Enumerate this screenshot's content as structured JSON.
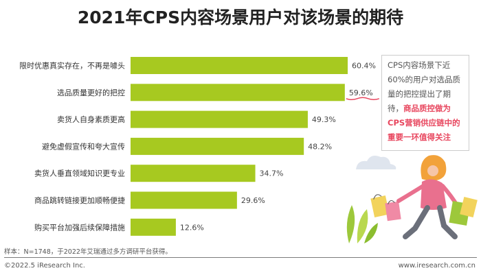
{
  "chart_data": {
    "type": "bar",
    "orientation": "horizontal",
    "title": "2021年CPS内容场景用户对该场景的期待",
    "categories": [
      "限时优惠真实存在，不再是噱头",
      "选品质量更好的把控",
      "卖货人自身素质更高",
      "避免虚假宣传和夸大宣传",
      "卖货人垂直领域知识更专业",
      "商品跳转链接更加顺畅便捷",
      "购买平台加强后续保障措施"
    ],
    "values": [
      60.4,
      59.6,
      49.3,
      48.2,
      34.7,
      29.6,
      12.6
    ],
    "value_labels": [
      "60.4%",
      "59.6%",
      "49.3%",
      "48.2%",
      "34.7%",
      "29.6%",
      "12.6%"
    ],
    "unit": "%",
    "xlim": [
      0,
      65
    ],
    "grid": false,
    "legend": "none",
    "bar_color": "#a7c920",
    "highlight_color": "#e8475f",
    "highlight_index": 1
  },
  "callout": {
    "plain_text": "CPS内容场景下近60%的用户对选品质量的把控提出了期待，",
    "highlight_text": "商品质控做为CPS营销供应链中的重要一环值得关注"
  },
  "note": "样本：N=1748，于2022年艾瑞通过多方调研平台获得。",
  "footer": {
    "left": "©2022.5 iResearch Inc.",
    "right": "www.iresearch.com.cn"
  }
}
